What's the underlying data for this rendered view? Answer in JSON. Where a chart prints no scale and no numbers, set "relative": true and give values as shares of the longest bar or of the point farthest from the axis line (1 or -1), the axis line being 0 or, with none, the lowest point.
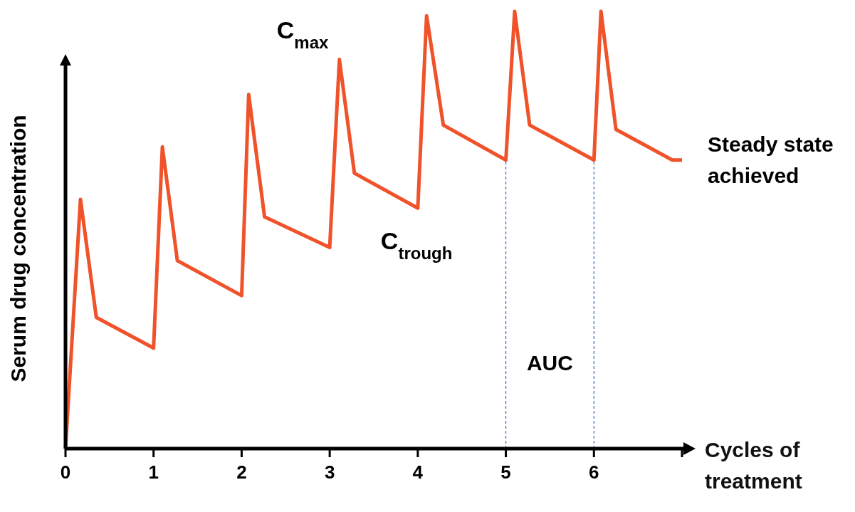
{
  "chart_data": {
    "type": "line",
    "relative": true,
    "xlabel": "Cycles of treatment",
    "ylabel": "Serum drug concentration",
    "x": [
      0,
      0.17,
      0.35,
      1,
      1.1,
      1.27,
      2,
      2.08,
      2.26,
      3,
      3.11,
      3.28,
      4,
      4.1,
      4.29,
      5,
      5.1,
      5.27,
      6,
      6.08,
      6.25,
      6.89,
      7
    ],
    "series": [
      {
        "color": "#f0522a",
        "values": [
          0,
          0.57,
          0.3,
          0.23,
          0.69,
          0.43,
          0.35,
          0.81,
          0.53,
          0.46,
          0.89,
          0.63,
          0.55,
          0.99,
          0.74,
          0.66,
          1,
          0.74,
          0.66,
          1,
          0.73,
          0.66,
          0.66
        ]
      }
    ],
    "xlim": [
      0,
      7
    ],
    "xticks": [
      0,
      1,
      2,
      3,
      4,
      5,
      6,
      {
        "value": 7,
        "label": null
      }
    ],
    "ref_lines": [
      {
        "axis": "x",
        "value": 5,
        "color": "#3a5fd0",
        "line_style": "dashed"
      },
      {
        "axis": "x",
        "value": 6,
        "color": "#3a5fd0",
        "line_style": "dashed"
      }
    ],
    "annotations": [
      {
        "text": "C$_{max}$",
        "x": 3.11,
        "y": 0.89
      },
      {
        "text": "C$_{trough}$",
        "x": 4,
        "y": 0.55
      },
      "AUC",
      {
        "text": "Steady state achieved",
        "x": 7,
        "y": 0.66
      }
    ],
    "grid": false,
    "line_style": "solid"
  }
}
